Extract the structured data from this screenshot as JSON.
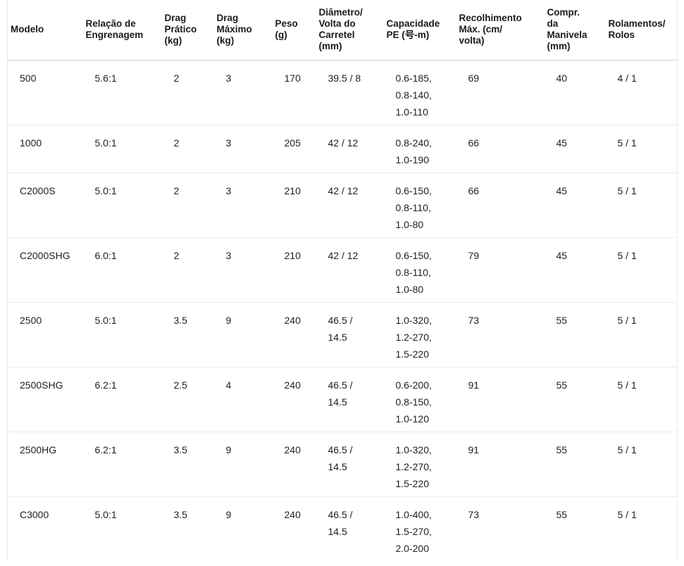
{
  "table": {
    "columns": [
      {
        "key": "modelo",
        "label": "Modelo"
      },
      {
        "key": "engrenagem",
        "label": "Relação de\nEngrenagem"
      },
      {
        "key": "drag-pratico",
        "label": "Drag\nPrático\n(kg)"
      },
      {
        "key": "drag-maximo",
        "label": "Drag\nMáximo\n(kg)"
      },
      {
        "key": "peso",
        "label": "Peso\n(g)"
      },
      {
        "key": "diametro",
        "label": "Diâmetro/\nVolta do\nCarretel\n(mm)"
      },
      {
        "key": "capacidade",
        "label": "Capacidade\nPE (号-m)"
      },
      {
        "key": "recolhimento",
        "label": "Recolhimento\nMáx. (cm/\nvolta)"
      },
      {
        "key": "manivela",
        "label": "Compr.\nda\nManivela\n(mm)"
      },
      {
        "key": "rolamentos",
        "label": "Rolamentos/\nRolos"
      }
    ],
    "rows": [
      {
        "modelo": "500",
        "engrenagem": "5.6:1",
        "drag-pratico": "2",
        "drag-maximo": "3",
        "peso": "170",
        "diametro": "39.5 / 8",
        "capacidade": "0.6-185,\n0.8-140,\n1.0-110",
        "recolhimento": "69",
        "manivela": "40",
        "rolamentos": "4 / 1"
      },
      {
        "modelo": "1000",
        "engrenagem": "5.0:1",
        "drag-pratico": "2",
        "drag-maximo": "3",
        "peso": "205",
        "diametro": "42 / 12",
        "capacidade": "0.8-240,\n1.0-190",
        "recolhimento": "66",
        "manivela": "45",
        "rolamentos": "5 / 1"
      },
      {
        "modelo": "C2000S",
        "engrenagem": "5.0:1",
        "drag-pratico": "2",
        "drag-maximo": "3",
        "peso": "210",
        "diametro": "42 / 12",
        "capacidade": "0.6-150,\n0.8-110,\n1.0-80",
        "recolhimento": "66",
        "manivela": "45",
        "rolamentos": "5 / 1"
      },
      {
        "modelo": "C2000SHG",
        "engrenagem": "6.0:1",
        "drag-pratico": "2",
        "drag-maximo": "3",
        "peso": "210",
        "diametro": "42 / 12",
        "capacidade": "0.6-150,\n0.8-110,\n1.0-80",
        "recolhimento": "79",
        "manivela": "45",
        "rolamentos": "5 / 1"
      },
      {
        "modelo": "2500",
        "engrenagem": "5.0:1",
        "drag-pratico": "3.5",
        "drag-maximo": "9",
        "peso": "240",
        "diametro": "46.5 /\n14.5",
        "capacidade": "1.0-320,\n1.2-270,\n1.5-220",
        "recolhimento": "73",
        "manivela": "55",
        "rolamentos": "5 / 1"
      },
      {
        "modelo": "2500SHG",
        "engrenagem": "6.2:1",
        "drag-pratico": "2.5",
        "drag-maximo": "4",
        "peso": "240",
        "diametro": "46.5 /\n14.5",
        "capacidade": "0.6-200,\n0.8-150,\n1.0-120",
        "recolhimento": "91",
        "manivela": "55",
        "rolamentos": "5 / 1"
      },
      {
        "modelo": "2500HG",
        "engrenagem": "6.2:1",
        "drag-pratico": "3.5",
        "drag-maximo": "9",
        "peso": "240",
        "diametro": "46.5 /\n14.5",
        "capacidade": "1.0-320,\n1.2-270,\n1.5-220",
        "recolhimento": "91",
        "manivela": "55",
        "rolamentos": "5 / 1"
      },
      {
        "modelo": "C3000",
        "engrenagem": "5.0:1",
        "drag-pratico": "3.5",
        "drag-maximo": "9",
        "peso": "240",
        "diametro": "46.5 /\n14.5",
        "capacidade": "1.0-400,\n1.5-270,\n2.0-200",
        "recolhimento": "73",
        "manivela": "55",
        "rolamentos": "5 / 1"
      }
    ]
  },
  "colors": {
    "background": "#ffffff",
    "text": "#201f1e",
    "header_border": "#d4d2d0",
    "row_border": "#edebe9"
  }
}
